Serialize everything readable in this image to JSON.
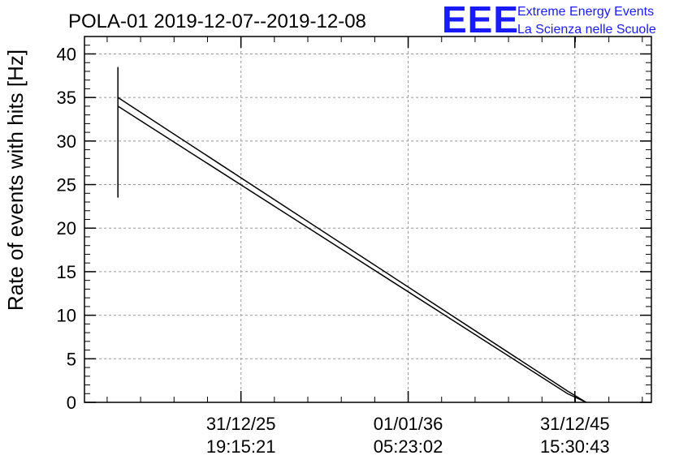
{
  "chart_data": {
    "type": "line",
    "title": "POLA-01 2019-12-07--2019-12-08",
    "ylabel": "Rate of events with hits [Hz]",
    "xlabel": "",
    "ylim": [
      0,
      42
    ],
    "xlim": [
      0,
      1
    ],
    "grid": true,
    "yticks": [
      0,
      5,
      10,
      15,
      20,
      25,
      30,
      35,
      40
    ],
    "xticks": [
      {
        "x": 0.276,
        "label_date": "31/12/25",
        "label_time": "19:15:21"
      },
      {
        "x": 0.571,
        "label_date": "01/01/36",
        "label_time": "05:23:02"
      },
      {
        "x": 0.865,
        "label_date": "31/12/45",
        "label_time": "15:30:43"
      }
    ],
    "series": [
      {
        "x": [
          0.059,
          0.852,
          0.885
        ],
        "y": [
          35.0,
          1.3,
          0.0
        ]
      },
      {
        "x": [
          0.059,
          0.852,
          0.885
        ],
        "y": [
          34.0,
          1.0,
          0.0
        ]
      }
    ],
    "error_bars": [
      {
        "x": 0.059,
        "y_low": 23.5,
        "y_high": 38.5
      }
    ]
  },
  "logo": {
    "mark": "EEE",
    "line1": "Extreme Energy Events",
    "line2": "La Scienza nelle Scuole"
  }
}
